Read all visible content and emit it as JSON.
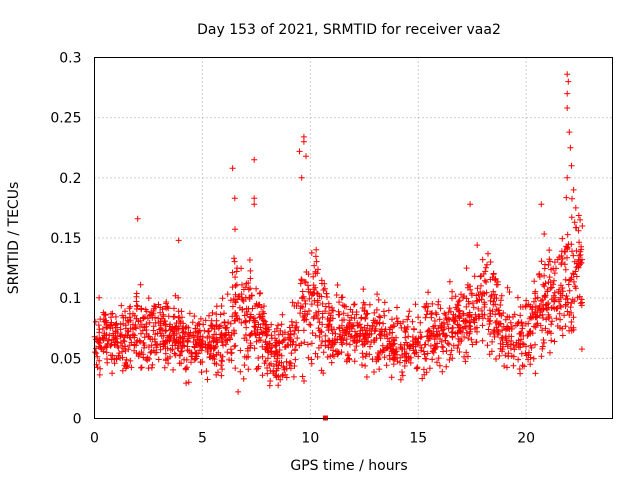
{
  "chart_data": {
    "type": "scatter",
    "title": "Day 153 of 2021, SRMTID for receiver vaa2",
    "xlabel": "GPS time / hours",
    "ylabel": "SRMTID / TECUs",
    "xlim": [
      0,
      24
    ],
    "ylim": [
      0,
      0.3
    ],
    "x_ticks": [
      0,
      5,
      10,
      15,
      20
    ],
    "x_tick_labels": [
      "0",
      "5",
      "10",
      "15",
      "20"
    ],
    "y_ticks": [
      0,
      0.05,
      0.1,
      0.15,
      0.2,
      0.25,
      0.3
    ],
    "y_tick_labels": [
      "0",
      "0.05",
      "0.1",
      "0.15",
      "0.2",
      "0.25",
      "0.3"
    ],
    "grid": true,
    "marker": "+",
    "series": [
      {
        "name": "SRMTID",
        "color": "#ff0000",
        "profile_hours": [
          0,
          1,
          2,
          3,
          4,
          5,
          6,
          6.5,
          7,
          7.5,
          8,
          8.5,
          9,
          9.5,
          10,
          10.5,
          11,
          12,
          13,
          14,
          15,
          16,
          17,
          17.5,
          18,
          18.5,
          19,
          19.5,
          20,
          20.5,
          21,
          21.5,
          22,
          22.5
        ],
        "profile_center": [
          0.07,
          0.065,
          0.075,
          0.07,
          0.065,
          0.06,
          0.07,
          0.085,
          0.09,
          0.08,
          0.06,
          0.055,
          0.06,
          0.08,
          0.1,
          0.08,
          0.07,
          0.075,
          0.07,
          0.06,
          0.065,
          0.07,
          0.08,
          0.09,
          0.1,
          0.09,
          0.075,
          0.065,
          0.07,
          0.09,
          0.1,
          0.11,
          0.12,
          0.12
        ],
        "profile_spread": [
          0.02,
          0.018,
          0.025,
          0.02,
          0.02,
          0.015,
          0.02,
          0.035,
          0.04,
          0.03,
          0.02,
          0.02,
          0.02,
          0.03,
          0.04,
          0.03,
          0.02,
          0.02,
          0.02,
          0.018,
          0.018,
          0.02,
          0.02,
          0.025,
          0.03,
          0.03,
          0.02,
          0.02,
          0.02,
          0.03,
          0.03,
          0.035,
          0.04,
          0.035
        ],
        "time_range": [
          0,
          22.6
        ],
        "point_count": 2000,
        "notable_points": [
          {
            "x": 2.0,
            "y": 0.166
          },
          {
            "x": 3.9,
            "y": 0.148
          },
          {
            "x": 6.4,
            "y": 0.208
          },
          {
            "x": 6.5,
            "y": 0.183
          },
          {
            "x": 7.4,
            "y": 0.215
          },
          {
            "x": 7.4,
            "y": 0.183
          },
          {
            "x": 7.4,
            "y": 0.178
          },
          {
            "x": 9.5,
            "y": 0.222
          },
          {
            "x": 9.7,
            "y": 0.234
          },
          {
            "x": 9.7,
            "y": 0.23
          },
          {
            "x": 9.8,
            "y": 0.218
          },
          {
            "x": 9.6,
            "y": 0.2
          },
          {
            "x": 17.4,
            "y": 0.178
          },
          {
            "x": 20.7,
            "y": 0.178
          },
          {
            "x": 21.9,
            "y": 0.286
          },
          {
            "x": 21.95,
            "y": 0.28
          },
          {
            "x": 21.9,
            "y": 0.27
          },
          {
            "x": 21.9,
            "y": 0.258
          },
          {
            "x": 22.0,
            "y": 0.238
          },
          {
            "x": 22.05,
            "y": 0.225
          },
          {
            "x": 22.1,
            "y": 0.21
          },
          {
            "x": 21.9,
            "y": 0.2
          },
          {
            "x": 22.2,
            "y": 0.19
          },
          {
            "x": 22.3,
            "y": 0.175
          },
          {
            "x": 22.5,
            "y": 0.165
          },
          {
            "x": 22.6,
            "y": 0.16
          }
        ],
        "zero_marker": {
          "x": 10.7,
          "y": 0
        }
      }
    ]
  }
}
